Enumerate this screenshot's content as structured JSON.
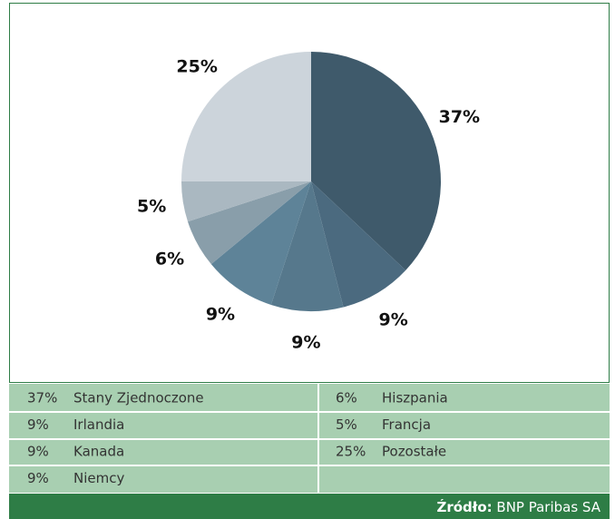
{
  "chart_data": {
    "type": "pie",
    "categories": [
      "Stany Zjednoczone",
      "Irlandia",
      "Kanada",
      "Niemcy",
      "Hiszpania",
      "Francja",
      "Pozostałe"
    ],
    "values": [
      37,
      9,
      9,
      9,
      6,
      5,
      25
    ],
    "value_labels": [
      "37%",
      "9%",
      "9%",
      "9%",
      "6%",
      "5%",
      "25%"
    ],
    "colors": [
      "#3f5a6b",
      "#4b6a7f",
      "#56788c",
      "#5e8398",
      "#899eaa",
      "#aab8c1",
      "#ccd4db"
    ],
    "source_label": "Źródło:",
    "source": "BNP Paribas SA"
  }
}
